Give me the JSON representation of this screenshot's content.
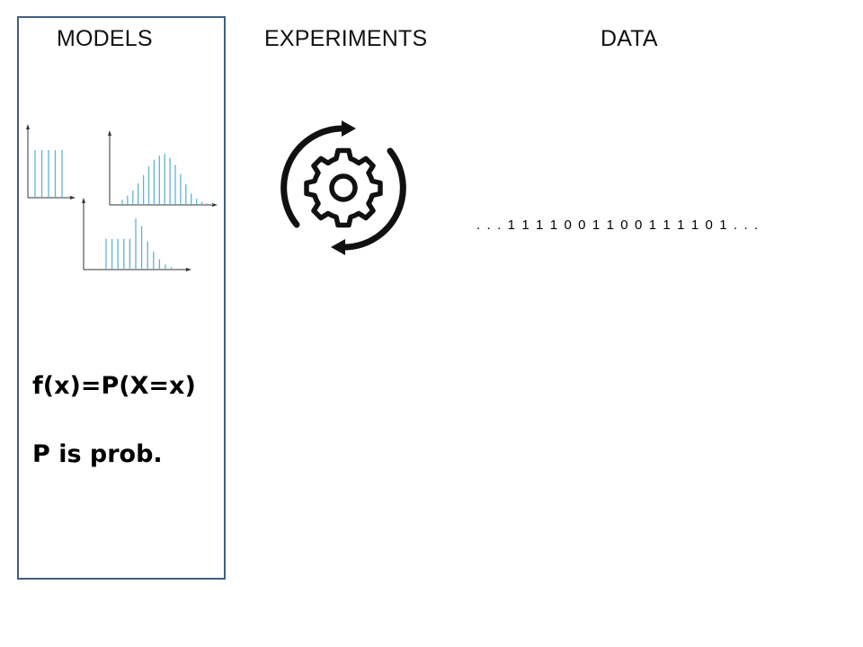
{
  "headings": {
    "models": "MODELS",
    "experiments": "EXPERIMENTS",
    "data": "DATA"
  },
  "formulas": {
    "pmf": "f(x)=P(X=x)",
    "note": "P is prob."
  },
  "data_stream": ". . . 1 1 1 1 0 0 1 1 0 0 1 1 1 1 0 1 . . .",
  "icons": {
    "experiment": "gear-with-cycle-arrows-icon"
  },
  "colors": {
    "panel_border": "#3f5f84",
    "histogram_bars": "#5fb3d3",
    "axes": "#333333"
  },
  "distributions": [
    {
      "name": "uniform",
      "values": [
        1,
        1,
        1,
        1,
        1
      ]
    },
    {
      "name": "binomial",
      "values": [
        0.1,
        0.18,
        0.28,
        0.42,
        0.58,
        0.75,
        0.88,
        0.96,
        1.0,
        0.92,
        0.78,
        0.6,
        0.4,
        0.22,
        0.12,
        0.06,
        0.03,
        0.02
      ]
    },
    {
      "name": "mixed",
      "values": [
        0.6,
        0.6,
        0.6,
        0.6,
        0.6,
        1.0,
        0.85,
        0.55,
        0.35,
        0.2,
        0.1,
        0.05
      ]
    }
  ]
}
